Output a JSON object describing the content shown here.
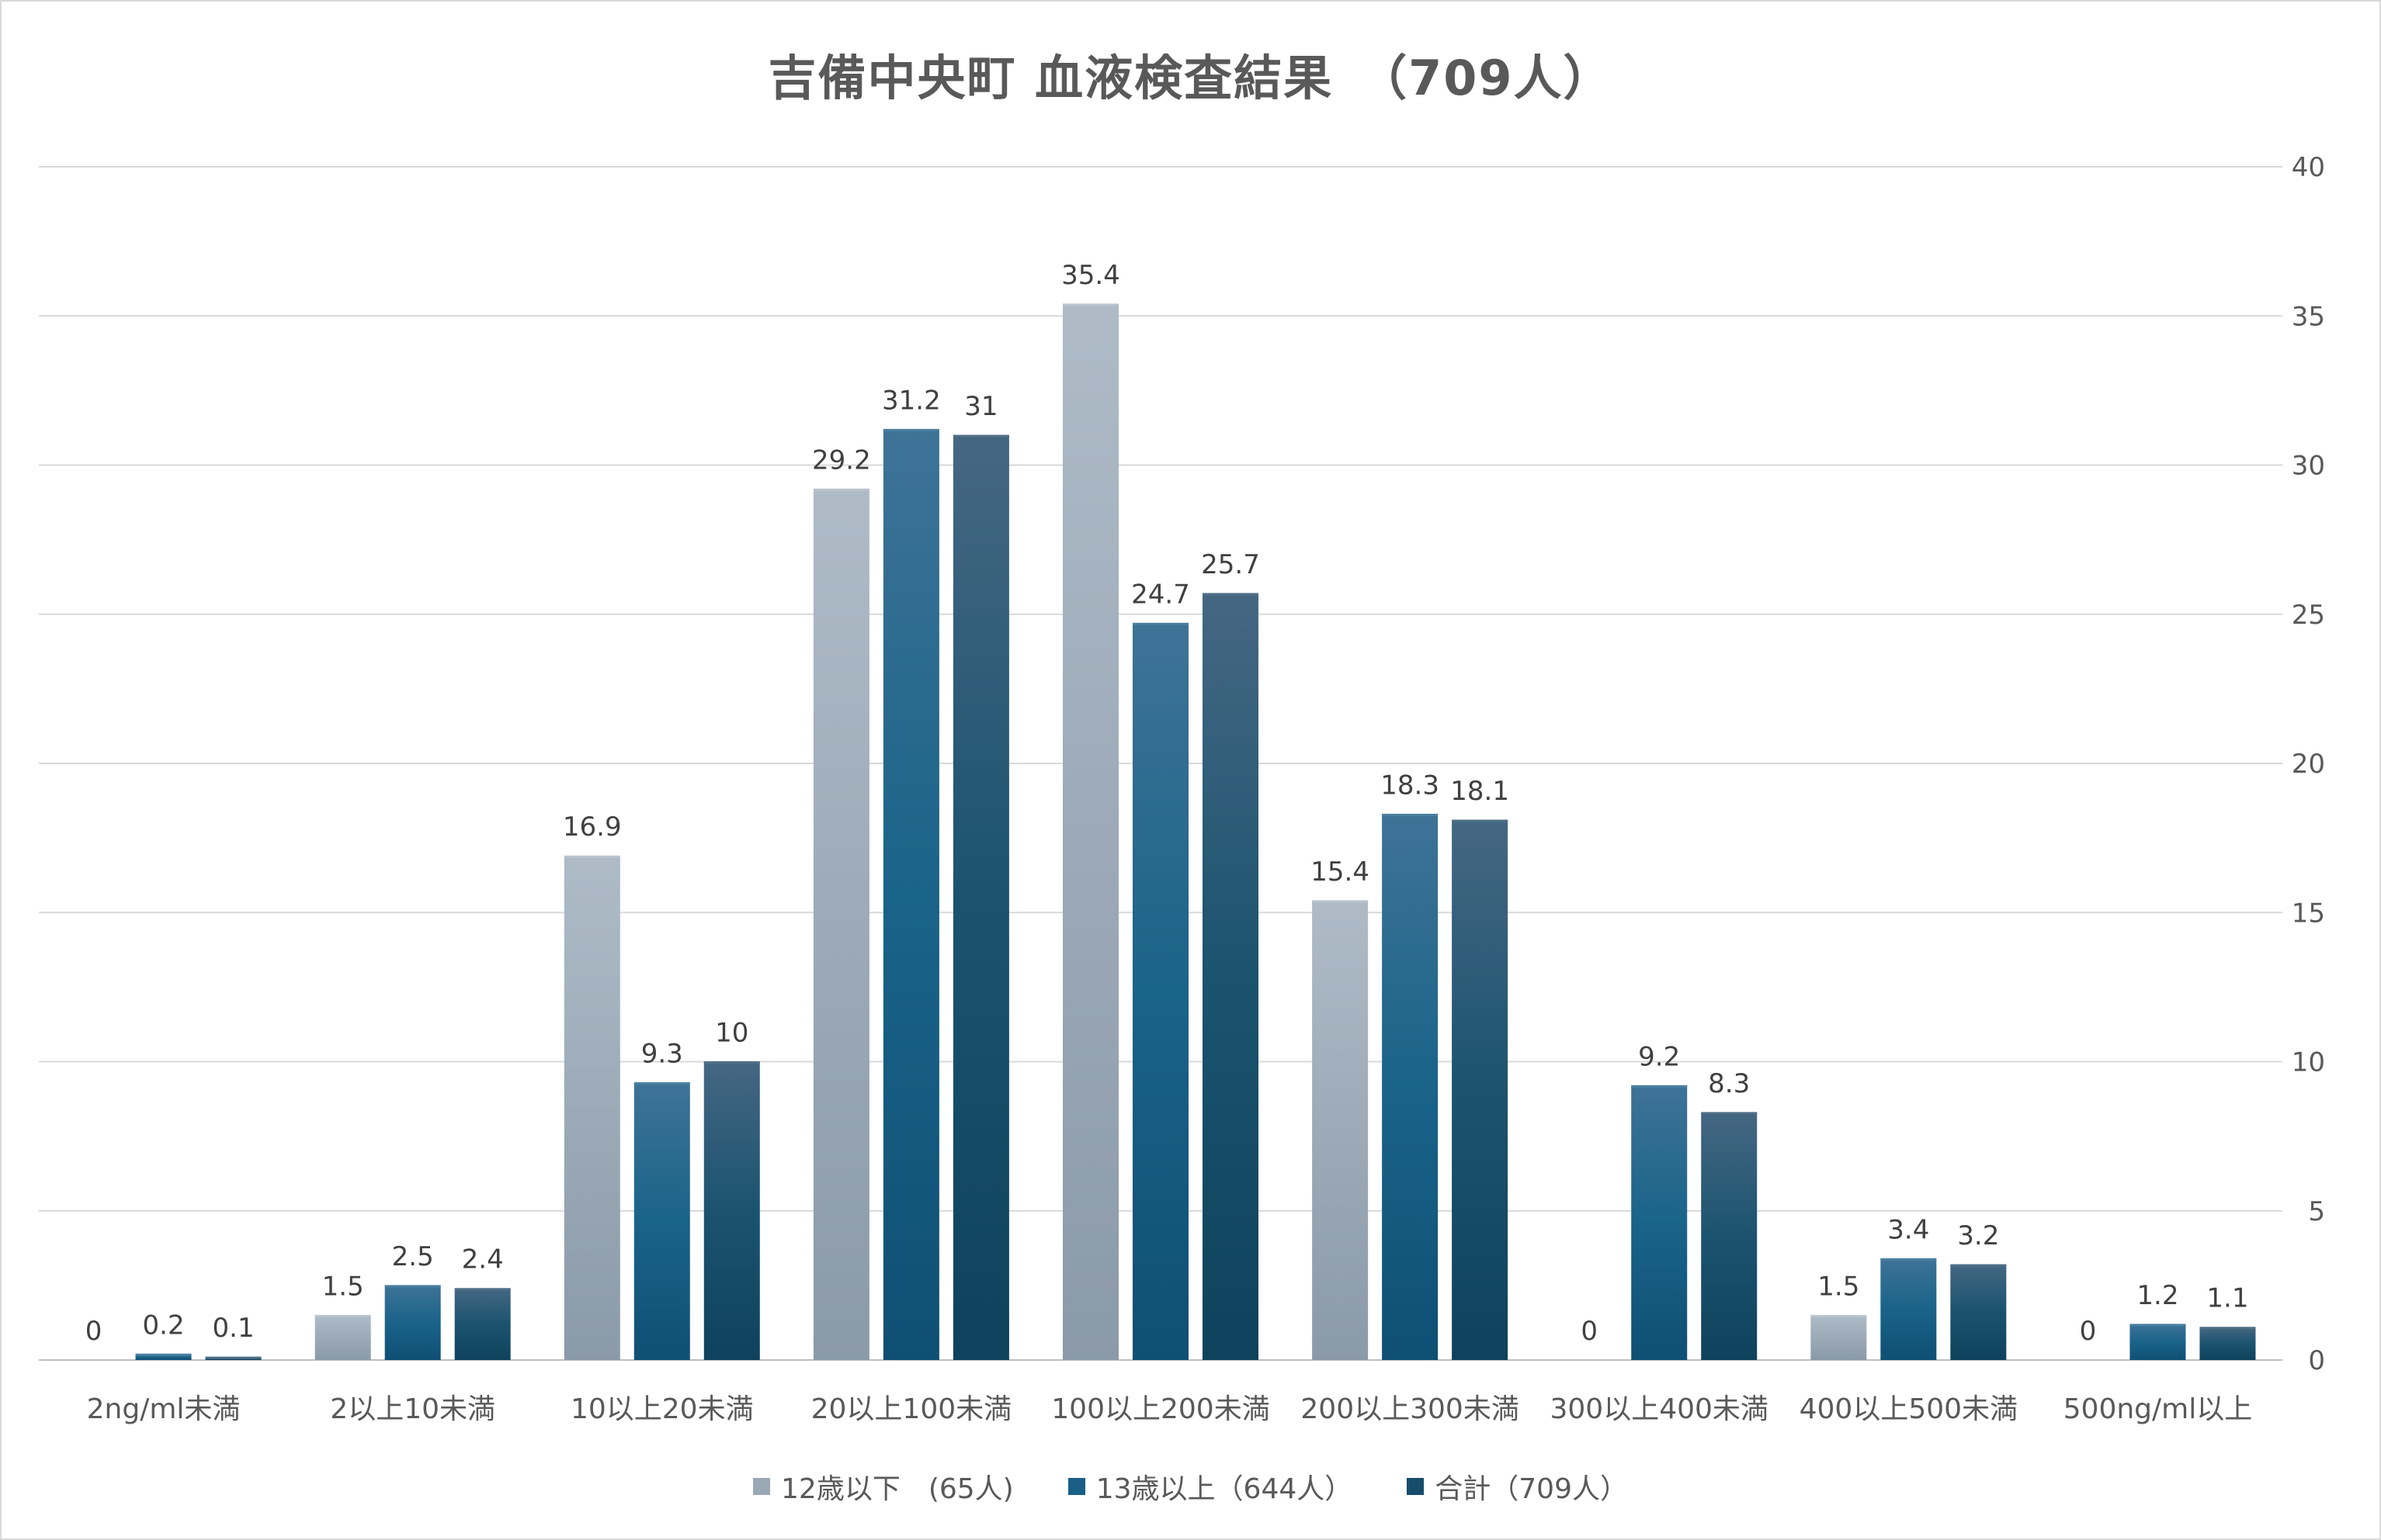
{
  "colors": {
    "series_1": "#9aa8b6",
    "series_2": "#1a5f86",
    "series_3": "#174d6c",
    "grid": "#d9d9d9",
    "text": "#595959"
  },
  "chart_data": {
    "type": "bar",
    "title": "吉備中央町 血液検査結果　（709人）",
    "categories": [
      "2ng/ml未満",
      "2以上10未満",
      "10以上20未満",
      "20以上100未満",
      "100以上200未満",
      "200以上300未満",
      "300以上400未満",
      "400以上500未満",
      "500ng/ml以上"
    ],
    "series": [
      {
        "name": "12歳以下　(65人)",
        "values": [
          0,
          1.5,
          16.9,
          29.2,
          35.4,
          15.4,
          0,
          1.5,
          0
        ]
      },
      {
        "name": "13歳以上（644人）",
        "values": [
          0.2,
          2.5,
          9.3,
          31.2,
          24.7,
          18.3,
          9.2,
          3.4,
          1.2
        ]
      },
      {
        "name": "合計（709人）",
        "values": [
          0.1,
          2.4,
          10,
          31,
          25.7,
          18.1,
          8.3,
          3.2,
          1.1
        ]
      }
    ],
    "y_ticks": [
      "0",
      "5",
      "10",
      "15",
      "20",
      "25",
      "30",
      "35",
      "40"
    ],
    "ylim": [
      0,
      40
    ],
    "y_axis_side": "right",
    "grid": true,
    "legend_position": "bottom"
  }
}
